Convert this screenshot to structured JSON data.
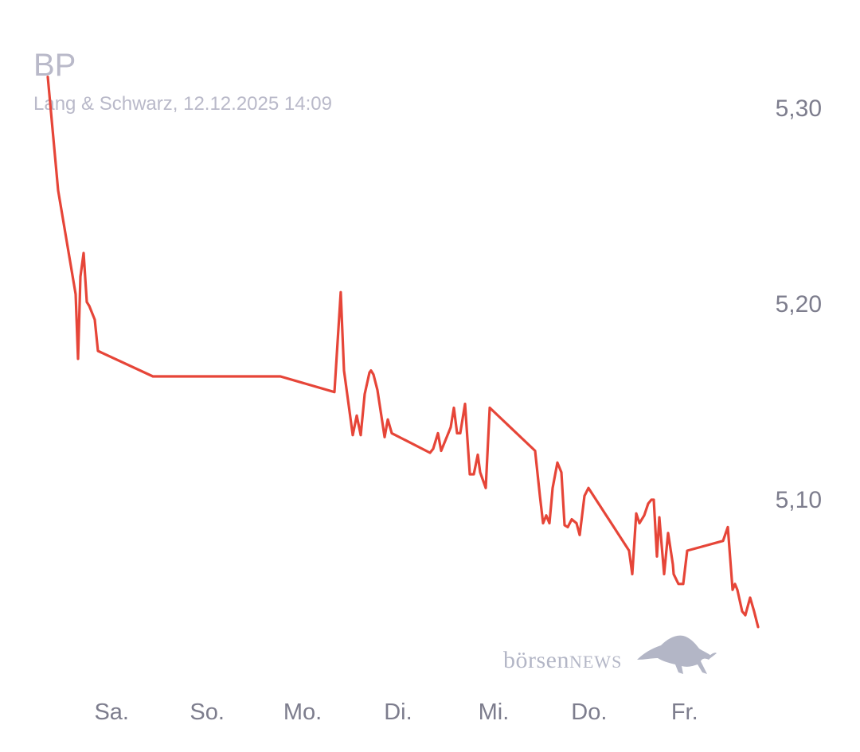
{
  "header": {
    "title": "BP",
    "subtitle": "Lang & Schwarz, 12.12.2025 14:09"
  },
  "logo": {
    "text_lower": "börsen",
    "text_caps": "NEWS",
    "icon": "bull-icon"
  },
  "colors": {
    "line": "#e64538",
    "axis_text": "#7d7d8d",
    "title_text": "#b9b9c9",
    "logo": "#b3b6c6"
  },
  "chart_data": {
    "type": "line",
    "title": "BP",
    "subtitle": "Lang & Schwarz, 12.12.2025 14:09",
    "xlabel": "",
    "ylabel": "",
    "grid": false,
    "ylim": [
      5.03,
      5.32
    ],
    "yticks": [
      5.3,
      5.2,
      5.1
    ],
    "ytick_labels": [
      "5,30",
      "5,20",
      "5,10"
    ],
    "xlim": [
      0,
      1
    ],
    "xticks": [
      0.0946,
      0.236,
      0.3774,
      0.5188,
      0.6603,
      0.8017,
      0.9431
    ],
    "xtick_labels": [
      "Sa.",
      "So.",
      "Mo.",
      "Di.",
      "Mi.",
      "Do.",
      "Fr."
    ],
    "series": [
      {
        "points": [
          [
            0.0,
            5.316
          ],
          [
            0.0153,
            5.258
          ],
          [
            0.0413,
            5.205
          ],
          [
            0.0448,
            5.172
          ],
          [
            0.0484,
            5.214
          ],
          [
            0.0531,
            5.226
          ],
          [
            0.0578,
            5.201
          ],
          [
            0.0614,
            5.199
          ],
          [
            0.0696,
            5.192
          ],
          [
            0.0743,
            5.176
          ],
          [
            0.1557,
            5.163
          ],
          [
            0.3444,
            5.163
          ],
          [
            0.4245,
            5.155
          ],
          [
            0.4339,
            5.206
          ],
          [
            0.4387,
            5.166
          ],
          [
            0.4516,
            5.133
          ],
          [
            0.4575,
            5.143
          ],
          [
            0.4634,
            5.133
          ],
          [
            0.4693,
            5.154
          ],
          [
            0.4764,
            5.165
          ],
          [
            0.4787,
            5.166
          ],
          [
            0.4823,
            5.164
          ],
          [
            0.4882,
            5.156
          ],
          [
            0.4988,
            5.132
          ],
          [
            0.5035,
            5.141
          ],
          [
            0.5094,
            5.134
          ],
          [
            0.566,
            5.124
          ],
          [
            0.5708,
            5.126
          ],
          [
            0.5778,
            5.134
          ],
          [
            0.5825,
            5.125
          ],
          [
            0.5908,
            5.132
          ],
          [
            0.5967,
            5.137
          ],
          [
            0.6014,
            5.147
          ],
          [
            0.6061,
            5.134
          ],
          [
            0.6108,
            5.134
          ],
          [
            0.6179,
            5.149
          ],
          [
            0.625,
            5.113
          ],
          [
            0.6309,
            5.113
          ],
          [
            0.6368,
            5.123
          ],
          [
            0.6403,
            5.114
          ],
          [
            0.6486,
            5.106
          ],
          [
            0.6545,
            5.147
          ],
          [
            0.7217,
            5.125
          ],
          [
            0.7288,
            5.102
          ],
          [
            0.7335,
            5.088
          ],
          [
            0.7382,
            5.092
          ],
          [
            0.7429,
            5.088
          ],
          [
            0.7476,
            5.106
          ],
          [
            0.7547,
            5.119
          ],
          [
            0.7606,
            5.114
          ],
          [
            0.7653,
            5.087
          ],
          [
            0.77,
            5.086
          ],
          [
            0.7759,
            5.09
          ],
          [
            0.783,
            5.088
          ],
          [
            0.7877,
            5.082
          ],
          [
            0.7948,
            5.102
          ],
          [
            0.8007,
            5.106
          ],
          [
            0.8608,
            5.074
          ],
          [
            0.8656,
            5.062
          ],
          [
            0.8715,
            5.093
          ],
          [
            0.8762,
            5.088
          ],
          [
            0.8833,
            5.092
          ],
          [
            0.8892,
            5.098
          ],
          [
            0.8939,
            5.1
          ],
          [
            0.8974,
            5.1
          ],
          [
            0.9021,
            5.071
          ],
          [
            0.9057,
            5.091
          ],
          [
            0.9127,
            5.062
          ],
          [
            0.9186,
            5.083
          ],
          [
            0.9257,
            5.067
          ],
          [
            0.9269,
            5.062
          ],
          [
            0.934,
            5.057
          ],
          [
            0.941,
            5.057
          ],
          [
            0.9469,
            5.074
          ],
          [
            1.0,
            5.079
          ],
          [
            1.0071,
            5.086
          ],
          [
            1.0142,
            5.054
          ],
          [
            1.0177,
            5.057
          ],
          [
            1.0212,
            5.054
          ],
          [
            1.0283,
            5.043
          ],
          [
            1.033,
            5.041
          ],
          [
            1.0401,
            5.05
          ],
          [
            1.046,
            5.043
          ],
          [
            1.0519,
            5.035
          ]
        ]
      }
    ]
  }
}
